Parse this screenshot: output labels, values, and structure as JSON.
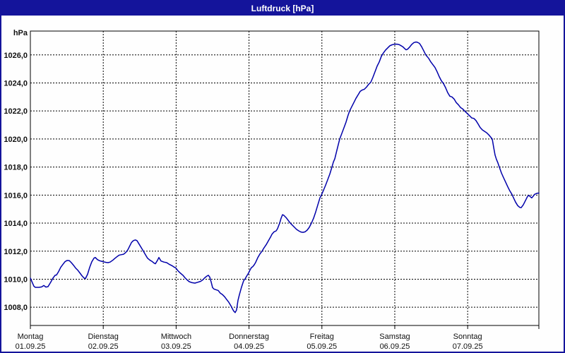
{
  "chart_data": {
    "type": "line",
    "title": "Luftdruck [hPa]",
    "ylabel": "hPa",
    "ylim": [
      1006.7,
      1027.7
    ],
    "xlim_days": [
      0,
      6.977
    ],
    "grid": true,
    "legend": "none",
    "line_color": "#0000aa",
    "yticks": [
      {
        "value": 1008,
        "label": "1008,0"
      },
      {
        "value": 1010,
        "label": "1010,0"
      },
      {
        "value": 1012,
        "label": "1012,0"
      },
      {
        "value": 1014,
        "label": "1014,0"
      },
      {
        "value": 1016,
        "label": "1016,0"
      },
      {
        "value": 1018,
        "label": "1018,0"
      },
      {
        "value": 1020,
        "label": "1020,0"
      },
      {
        "value": 1022,
        "label": "1022,0"
      },
      {
        "value": 1024,
        "label": "1024,0"
      },
      {
        "value": 1026,
        "label": "1026,0"
      }
    ],
    "xticks": [
      {
        "t": 0,
        "weekday": "Montag",
        "date": "01.09.25"
      },
      {
        "t": 1,
        "weekday": "Dienstag",
        "date": "02.09.25"
      },
      {
        "t": 2,
        "weekday": "Mittwoch",
        "date": "03.09.25"
      },
      {
        "t": 3,
        "weekday": "Donnerstag",
        "date": "04.09.25"
      },
      {
        "t": 4,
        "weekday": "Freitag",
        "date": "05.09.25"
      },
      {
        "t": 5,
        "weekday": "Samstag",
        "date": "06.09.25"
      },
      {
        "t": 6,
        "weekday": "Sonntag",
        "date": "07.09.25"
      }
    ],
    "series": [
      {
        "name": "Luftdruck",
        "points": [
          [
            0.0,
            1010.08
          ],
          [
            0.019,
            1009.85
          ],
          [
            0.048,
            1009.5
          ],
          [
            0.068,
            1009.42
          ],
          [
            0.116,
            1009.42
          ],
          [
            0.155,
            1009.45
          ],
          [
            0.184,
            1009.55
          ],
          [
            0.213,
            1009.44
          ],
          [
            0.242,
            1009.47
          ],
          [
            0.281,
            1009.8
          ],
          [
            0.31,
            1010.08
          ],
          [
            0.339,
            1010.28
          ],
          [
            0.359,
            1010.3
          ],
          [
            0.388,
            1010.55
          ],
          [
            0.417,
            1010.85
          ],
          [
            0.446,
            1011.05
          ],
          [
            0.475,
            1011.25
          ],
          [
            0.504,
            1011.34
          ],
          [
            0.533,
            1011.33
          ],
          [
            0.562,
            1011.18
          ],
          [
            0.591,
            1011.0
          ],
          [
            0.62,
            1010.8
          ],
          [
            0.649,
            1010.65
          ],
          [
            0.678,
            1010.45
          ],
          [
            0.707,
            1010.25
          ],
          [
            0.736,
            1010.08
          ],
          [
            0.756,
            1010.05
          ],
          [
            0.785,
            1010.35
          ],
          [
            0.814,
            1010.85
          ],
          [
            0.843,
            1011.25
          ],
          [
            0.872,
            1011.5
          ],
          [
            0.891,
            1011.55
          ],
          [
            0.92,
            1011.4
          ],
          [
            0.95,
            1011.32
          ],
          [
            0.979,
            1011.28
          ],
          [
            0.998,
            1011.25
          ],
          [
            1.037,
            1011.2
          ],
          [
            1.066,
            1011.18
          ],
          [
            1.095,
            1011.22
          ],
          [
            1.134,
            1011.37
          ],
          [
            1.163,
            1011.5
          ],
          [
            1.192,
            1011.62
          ],
          [
            1.221,
            1011.72
          ],
          [
            1.25,
            1011.75
          ],
          [
            1.279,
            1011.78
          ],
          [
            1.308,
            1011.9
          ],
          [
            1.337,
            1012.1
          ],
          [
            1.366,
            1012.4
          ],
          [
            1.386,
            1012.6
          ],
          [
            1.405,
            1012.72
          ],
          [
            1.424,
            1012.78
          ],
          [
            1.444,
            1012.8
          ],
          [
            1.463,
            1012.75
          ],
          [
            1.492,
            1012.5
          ],
          [
            1.521,
            1012.25
          ],
          [
            1.55,
            1012.0
          ],
          [
            1.579,
            1011.75
          ],
          [
            1.608,
            1011.5
          ],
          [
            1.638,
            1011.37
          ],
          [
            1.667,
            1011.28
          ],
          [
            1.696,
            1011.15
          ],
          [
            1.715,
            1011.1
          ],
          [
            1.744,
            1011.35
          ],
          [
            1.764,
            1011.55
          ],
          [
            1.793,
            1011.3
          ],
          [
            1.831,
            1011.22
          ],
          [
            1.87,
            1011.18
          ],
          [
            1.909,
            1011.05
          ],
          [
            1.948,
            1010.95
          ],
          [
            1.977,
            1010.85
          ],
          [
            1.996,
            1010.8
          ],
          [
            2.025,
            1010.6
          ],
          [
            2.054,
            1010.45
          ],
          [
            2.093,
            1010.28
          ],
          [
            2.122,
            1010.1
          ],
          [
            2.151,
            1009.95
          ],
          [
            2.18,
            1009.82
          ],
          [
            2.219,
            1009.75
          ],
          [
            2.258,
            1009.72
          ],
          [
            2.297,
            1009.78
          ],
          [
            2.335,
            1009.85
          ],
          [
            2.364,
            1009.95
          ],
          [
            2.393,
            1010.1
          ],
          [
            2.422,
            1010.22
          ],
          [
            2.442,
            1010.28
          ],
          [
            2.461,
            1010.15
          ],
          [
            2.481,
            1009.8
          ],
          [
            2.5,
            1009.4
          ],
          [
            2.519,
            1009.3
          ],
          [
            2.548,
            1009.25
          ],
          [
            2.577,
            1009.2
          ],
          [
            2.607,
            1009.0
          ],
          [
            2.636,
            1008.9
          ],
          [
            2.665,
            1008.75
          ],
          [
            2.694,
            1008.55
          ],
          [
            2.723,
            1008.35
          ],
          [
            2.752,
            1008.1
          ],
          [
            2.771,
            1007.9
          ],
          [
            2.791,
            1007.72
          ],
          [
            2.81,
            1007.62
          ],
          [
            2.829,
            1007.8
          ],
          [
            2.849,
            1008.5
          ],
          [
            2.868,
            1008.9
          ],
          [
            2.897,
            1009.44
          ],
          [
            2.926,
            1009.9
          ],
          [
            2.946,
            1010.02
          ],
          [
            2.965,
            1010.2
          ],
          [
            2.994,
            1010.44
          ],
          [
            3.013,
            1010.65
          ],
          [
            3.033,
            1010.83
          ],
          [
            3.052,
            1010.9
          ],
          [
            3.072,
            1011.03
          ],
          [
            3.091,
            1011.2
          ],
          [
            3.12,
            1011.54
          ],
          [
            3.149,
            1011.8
          ],
          [
            3.178,
            1012.0
          ],
          [
            3.207,
            1012.25
          ],
          [
            3.236,
            1012.46
          ],
          [
            3.266,
            1012.74
          ],
          [
            3.295,
            1013.0
          ],
          [
            3.314,
            1013.2
          ],
          [
            3.343,
            1013.38
          ],
          [
            3.372,
            1013.45
          ],
          [
            3.391,
            1013.6
          ],
          [
            3.421,
            1014.0
          ],
          [
            3.44,
            1014.35
          ],
          [
            3.459,
            1014.6
          ],
          [
            3.479,
            1014.55
          ],
          [
            3.508,
            1014.4
          ],
          [
            3.537,
            1014.2
          ],
          [
            3.566,
            1014.0
          ],
          [
            3.595,
            1013.85
          ],
          [
            3.624,
            1013.7
          ],
          [
            3.653,
            1013.55
          ],
          [
            3.682,
            1013.45
          ],
          [
            3.711,
            1013.37
          ],
          [
            3.74,
            1013.34
          ],
          [
            3.769,
            1013.38
          ],
          [
            3.798,
            1013.5
          ],
          [
            3.827,
            1013.7
          ],
          [
            3.857,
            1014.0
          ],
          [
            3.886,
            1014.35
          ],
          [
            3.915,
            1014.8
          ],
          [
            3.944,
            1015.3
          ],
          [
            3.973,
            1015.8
          ],
          [
            3.992,
            1016.0
          ],
          [
            4.022,
            1016.35
          ],
          [
            4.051,
            1016.7
          ],
          [
            4.08,
            1017.1
          ],
          [
            4.109,
            1017.5
          ],
          [
            4.138,
            1018.0
          ],
          [
            4.157,
            1018.35
          ],
          [
            4.177,
            1018.6
          ],
          [
            4.206,
            1019.2
          ],
          [
            4.225,
            1019.6
          ],
          [
            4.244,
            1020.0
          ],
          [
            4.273,
            1020.4
          ],
          [
            4.302,
            1020.8
          ],
          [
            4.331,
            1021.2
          ],
          [
            4.36,
            1021.7
          ],
          [
            4.38,
            1022.0
          ],
          [
            4.409,
            1022.3
          ],
          [
            4.438,
            1022.6
          ],
          [
            4.467,
            1022.9
          ],
          [
            4.496,
            1023.15
          ],
          [
            4.525,
            1023.4
          ],
          [
            4.554,
            1023.5
          ],
          [
            4.583,
            1023.55
          ],
          [
            4.612,
            1023.7
          ],
          [
            4.641,
            1023.9
          ],
          [
            4.671,
            1024.05
          ],
          [
            4.7,
            1024.4
          ],
          [
            4.729,
            1024.8
          ],
          [
            4.758,
            1025.2
          ],
          [
            4.787,
            1025.5
          ],
          [
            4.816,
            1025.9
          ],
          [
            4.845,
            1026.15
          ],
          [
            4.874,
            1026.35
          ],
          [
            4.903,
            1026.5
          ],
          [
            4.932,
            1026.65
          ],
          [
            4.961,
            1026.72
          ],
          [
            4.99,
            1026.76
          ],
          [
            5.029,
            1026.77
          ],
          [
            5.058,
            1026.74
          ],
          [
            5.087,
            1026.65
          ],
          [
            5.116,
            1026.55
          ],
          [
            5.136,
            1026.45
          ],
          [
            5.155,
            1026.36
          ],
          [
            5.174,
            1026.4
          ],
          [
            5.203,
            1026.55
          ],
          [
            5.233,
            1026.75
          ],
          [
            5.262,
            1026.88
          ],
          [
            5.291,
            1026.92
          ],
          [
            5.31,
            1026.9
          ],
          [
            5.339,
            1026.82
          ],
          [
            5.368,
            1026.58
          ],
          [
            5.397,
            1026.3
          ],
          [
            5.426,
            1026.0
          ],
          [
            5.465,
            1025.75
          ],
          [
            5.494,
            1025.5
          ],
          [
            5.523,
            1025.3
          ],
          [
            5.552,
            1025.1
          ],
          [
            5.581,
            1024.8
          ],
          [
            5.61,
            1024.45
          ],
          [
            5.64,
            1024.15
          ],
          [
            5.669,
            1023.95
          ],
          [
            5.698,
            1023.65
          ],
          [
            5.727,
            1023.3
          ],
          [
            5.756,
            1023.05
          ],
          [
            5.785,
            1023.0
          ],
          [
            5.814,
            1022.85
          ],
          [
            5.843,
            1022.6
          ],
          [
            5.872,
            1022.45
          ],
          [
            5.901,
            1022.25
          ],
          [
            5.93,
            1022.15
          ],
          [
            5.959,
            1022.0
          ],
          [
            5.998,
            1021.8
          ],
          [
            6.027,
            1021.65
          ],
          [
            6.056,
            1021.5
          ],
          [
            6.085,
            1021.47
          ],
          [
            6.114,
            1021.32
          ],
          [
            6.143,
            1021.08
          ],
          [
            6.172,
            1020.82
          ],
          [
            6.202,
            1020.65
          ],
          [
            6.231,
            1020.55
          ],
          [
            6.26,
            1020.45
          ],
          [
            6.289,
            1020.3
          ],
          [
            6.318,
            1020.12
          ],
          [
            6.337,
            1020.0
          ],
          [
            6.357,
            1019.4
          ],
          [
            6.376,
            1018.85
          ],
          [
            6.395,
            1018.55
          ],
          [
            6.415,
            1018.3
          ],
          [
            6.434,
            1018.0
          ],
          [
            6.463,
            1017.58
          ],
          [
            6.492,
            1017.25
          ],
          [
            6.521,
            1016.93
          ],
          [
            6.55,
            1016.6
          ],
          [
            6.579,
            1016.3
          ],
          [
            6.608,
            1016.05
          ],
          [
            6.628,
            1015.82
          ],
          [
            6.657,
            1015.5
          ],
          [
            6.686,
            1015.25
          ],
          [
            6.715,
            1015.12
          ],
          [
            6.734,
            1015.1
          ],
          [
            6.763,
            1015.3
          ],
          [
            6.792,
            1015.6
          ],
          [
            6.821,
            1015.9
          ],
          [
            6.841,
            1015.98
          ],
          [
            6.86,
            1015.88
          ],
          [
            6.879,
            1015.8
          ],
          [
            6.899,
            1015.92
          ],
          [
            6.918,
            1016.05
          ],
          [
            6.947,
            1016.12
          ],
          [
            6.977,
            1016.15
          ]
        ]
      }
    ]
  }
}
